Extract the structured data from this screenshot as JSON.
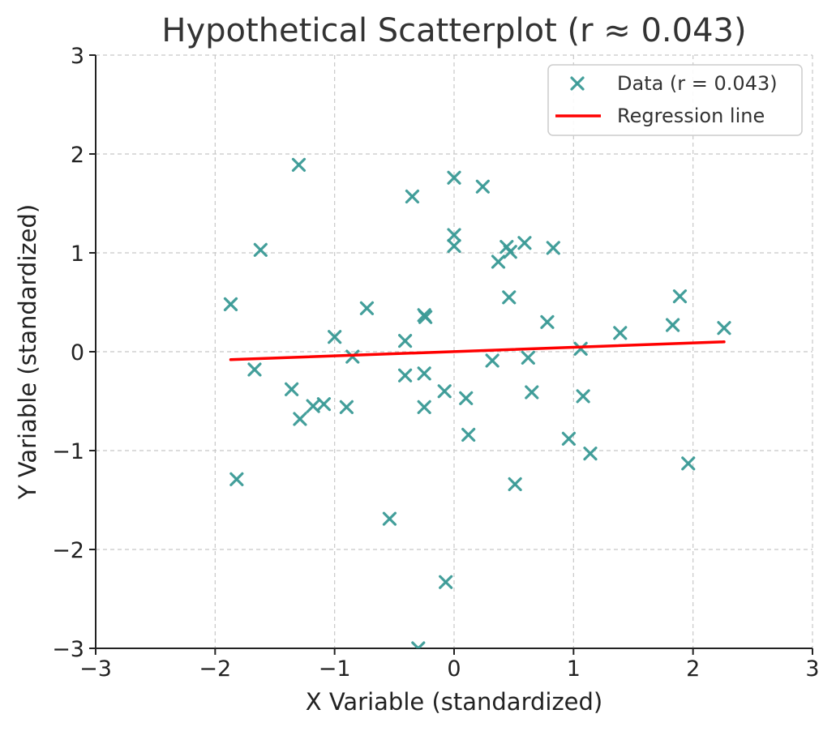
{
  "chart_data": {
    "type": "scatter",
    "title": "Hypothetical Scatterplot (r ≈ 0.043)",
    "xlabel": "X Variable (standardized)",
    "ylabel": "Y Variable (standardized)",
    "xlim": [
      -3,
      3
    ],
    "ylim": [
      -3,
      3
    ],
    "xticks": [
      -3,
      -2,
      -1,
      0,
      1,
      2,
      3
    ],
    "yticks": [
      -3,
      -2,
      -1,
      0,
      1,
      2,
      3
    ],
    "xtick_labels": [
      "−3",
      "−2",
      "−1",
      "0",
      "1",
      "2",
      "3"
    ],
    "ytick_labels": [
      "−3",
      "−2",
      "−1",
      "0",
      "1",
      "2",
      "3"
    ],
    "grid": true,
    "legend_position": "top-right",
    "series": [
      {
        "name": "Data (r = 0.043)",
        "kind": "scatter",
        "marker": "x",
        "color": "#3a9a96",
        "points": [
          [
            -1.3,
            1.89
          ],
          [
            -1.62,
            1.03
          ],
          [
            -1.87,
            0.48
          ],
          [
            -1.67,
            -0.18
          ],
          [
            -1.82,
            -1.29
          ],
          [
            -1.36,
            -0.38
          ],
          [
            -1.29,
            -0.68
          ],
          [
            -1.18,
            -0.55
          ],
          [
            -1.09,
            -0.53
          ],
          [
            -1.0,
            0.15
          ],
          [
            -0.9,
            -0.56
          ],
          [
            -0.85,
            -0.05
          ],
          [
            -0.73,
            0.44
          ],
          [
            -0.54,
            -1.69
          ],
          [
            -0.41,
            0.11
          ],
          [
            -0.41,
            -0.24
          ],
          [
            -0.35,
            1.57
          ],
          [
            -0.25,
            0.37
          ],
          [
            -0.24,
            0.35
          ],
          [
            -0.25,
            -0.22
          ],
          [
            -0.25,
            -0.56
          ],
          [
            -0.08,
            -0.4
          ],
          [
            -0.07,
            -2.33
          ],
          [
            -0.3,
            -3.0
          ],
          [
            0.0,
            1.76
          ],
          [
            0.0,
            1.18
          ],
          [
            0.0,
            1.07
          ],
          [
            0.1,
            -0.47
          ],
          [
            0.12,
            -0.84
          ],
          [
            0.24,
            1.67
          ],
          [
            0.32,
            -0.09
          ],
          [
            0.37,
            0.91
          ],
          [
            0.44,
            1.06
          ],
          [
            0.47,
            1.01
          ],
          [
            0.46,
            0.55
          ],
          [
            0.51,
            -1.34
          ],
          [
            0.59,
            1.1
          ],
          [
            0.62,
            -0.06
          ],
          [
            0.65,
            -0.41
          ],
          [
            0.78,
            0.3
          ],
          [
            0.83,
            1.05
          ],
          [
            0.96,
            -0.88
          ],
          [
            1.06,
            0.03
          ],
          [
            1.08,
            -0.45
          ],
          [
            1.14,
            -1.03
          ],
          [
            1.39,
            0.19
          ],
          [
            1.83,
            0.27
          ],
          [
            1.89,
            0.56
          ],
          [
            1.96,
            -1.13
          ],
          [
            2.26,
            0.24
          ]
        ]
      },
      {
        "name": "Regression line",
        "kind": "line",
        "color": "#ff0000",
        "x": [
          -1.87,
          2.26
        ],
        "y": [
          -0.08,
          0.1
        ]
      }
    ]
  }
}
